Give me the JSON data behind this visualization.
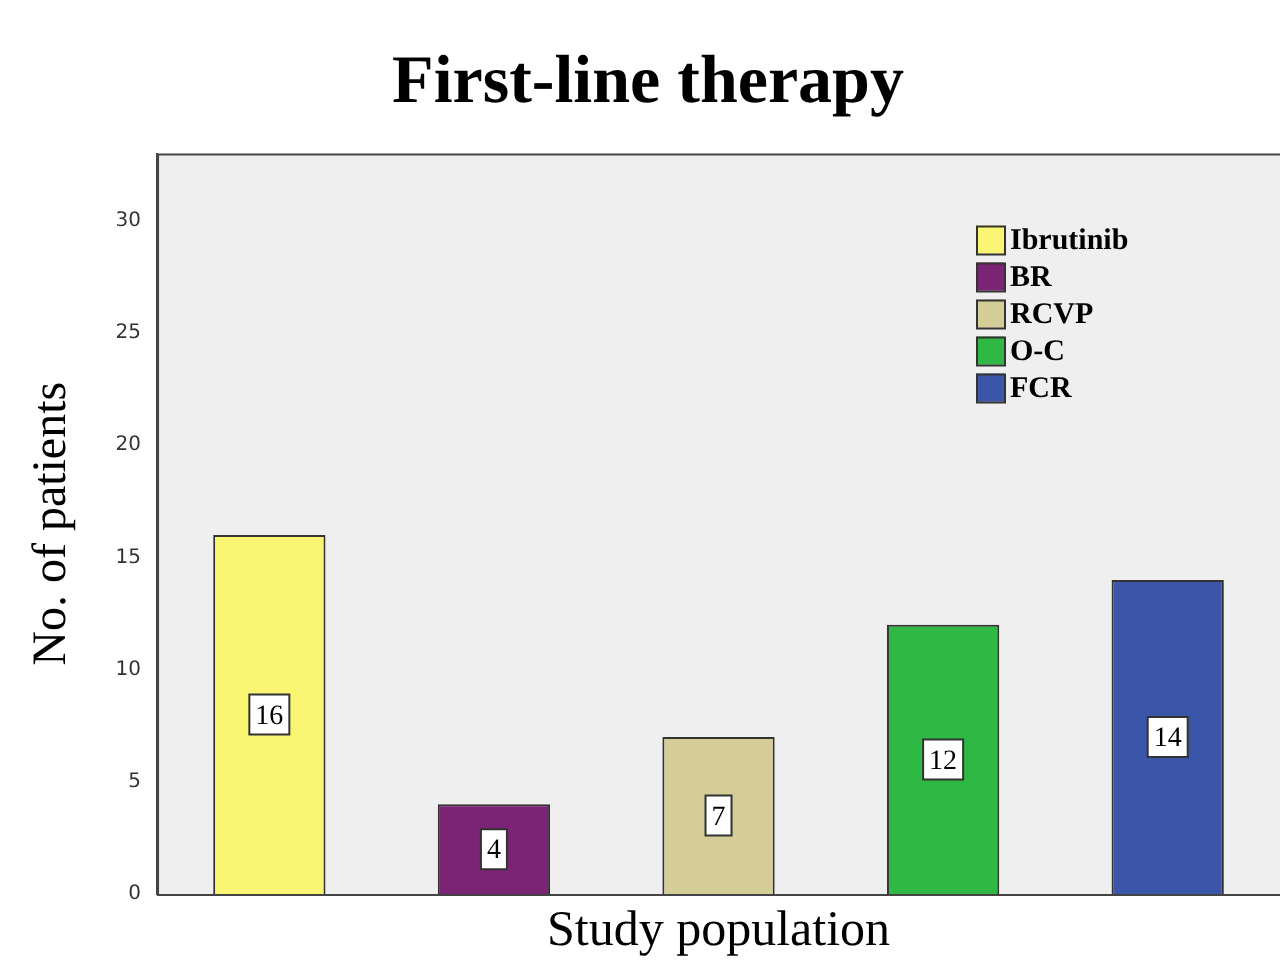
{
  "chart_data": {
    "type": "bar",
    "title": "First-line therapy",
    "xlabel": "Study population",
    "ylabel": "No. of patients",
    "categories": [
      null,
      null,
      null,
      null,
      null
    ],
    "series": [
      {
        "name": "Ibrutinib",
        "color": "#fbf574",
        "values": [
          16,
          null,
          null,
          null,
          null
        ]
      },
      {
        "name": "BR",
        "color": "#7b2375",
        "values": [
          null,
          4,
          null,
          null,
          null
        ]
      },
      {
        "name": "RCVP",
        "color": "#d4cd98",
        "values": [
          null,
          null,
          7,
          null,
          null
        ]
      },
      {
        "name": "O-C",
        "color": "#2fb844",
        "values": [
          null,
          null,
          null,
          12,
          null
        ]
      },
      {
        "name": "FCR",
        "color": "#3b55a8",
        "values": [
          null,
          null,
          null,
          null,
          14
        ]
      }
    ],
    "ylim": [
      0,
      33
    ],
    "yticks": [
      0,
      5,
      10,
      15,
      20,
      25,
      30
    ],
    "stacked": true,
    "grid": false,
    "legend": "top right",
    "data_labels": true
  }
}
